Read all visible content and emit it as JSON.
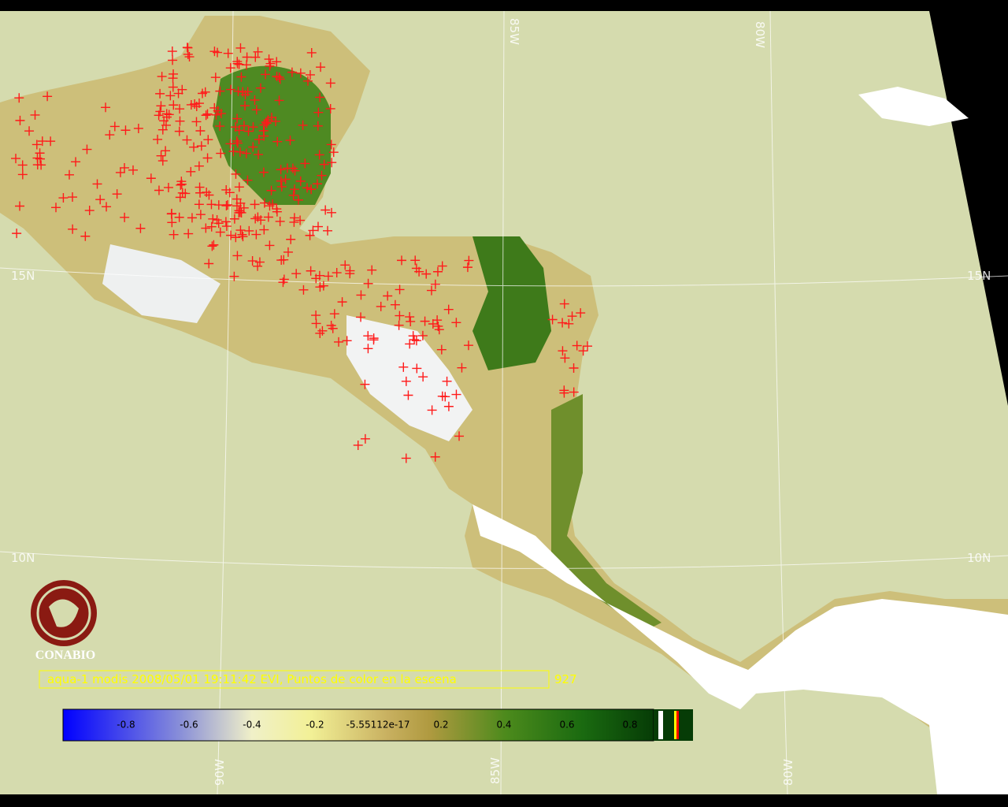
{
  "grid_labels": {
    "top": [
      "85W",
      "80W"
    ],
    "left": [
      "15N",
      "10N"
    ],
    "right": [
      "15N",
      "10N"
    ],
    "bottom": [
      "90W",
      "85W",
      "80W"
    ]
  },
  "logo": {
    "text": "CONABIO"
  },
  "caption": {
    "text": "aqua-1 modis 2008/05/01 19:11:42 EVI, Puntos de color en la escena",
    "count": "927"
  },
  "colorbar": {
    "labels": [
      "-0.8",
      "-0.6",
      "-0.4",
      "-0.2",
      "-5.55112e-17",
      "0.2",
      "0.4",
      "0.6",
      "0.8"
    ]
  }
}
